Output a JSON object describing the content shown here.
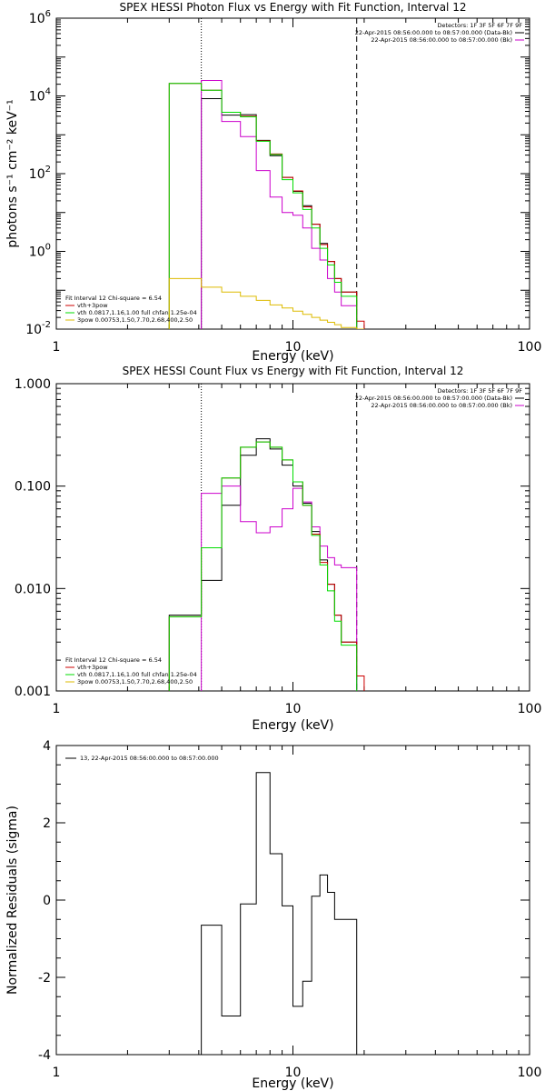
{
  "chart_data": [
    {
      "id": "photon",
      "type": "line",
      "title": "SPEX HESSI Photon Flux vs Energy with Fit Function, Interval 12",
      "xlabel": "Energy (keV)",
      "ylabel": "photons s⁻¹ cm⁻² keV⁻¹",
      "xscale": "log",
      "yscale": "log",
      "xlim": [
        1,
        100
      ],
      "ylim": [
        0.01,
        1000000
      ],
      "x_ticks": [
        {
          "value": 1,
          "label": "1"
        },
        {
          "value": 10,
          "label": "10"
        },
        {
          "value": 100,
          "label": "100"
        }
      ],
      "y_ticks": [
        {
          "value": 0.01,
          "label": "10",
          "exp": "-2"
        },
        {
          "value": 1,
          "label": "10",
          "exp": "0"
        },
        {
          "value": 100,
          "label": "10",
          "exp": "2"
        },
        {
          "value": 10000,
          "label": "10",
          "exp": "4"
        },
        {
          "value": 1000000,
          "label": "10",
          "exp": "6"
        }
      ],
      "fit_legend": [
        {
          "text": "Fit Interval 12    Chi-square = 6.54",
          "color": null
        },
        {
          "text": "vth+3pow",
          "color": "#cc0000"
        },
        {
          "text": "vth 0.0817,1.16,1.00  full chfan 1.25e-04",
          "color": "#00dd00"
        },
        {
          "text": "3pow 0.00753,1.50,7.70,2.68,400,2.50",
          "color": "#ddbb00"
        }
      ],
      "detector_legend": [
        {
          "text": "Detectors: 1F 3F 5F 6F 7F 9F",
          "color": null
        },
        {
          "text": "22-Apr-2015 08:56:00.000 to 08:57:00.000 (Data-Bk)",
          "color": "#000000"
        },
        {
          "text": "22-Apr-2015 08:56:00.000 to 08:57:00.000 (Bk)",
          "color": "#cc00cc"
        }
      ],
      "vlines": [
        {
          "x": 4.1,
          "style": "dotted",
          "color": "#000000"
        },
        {
          "x": 18.6,
          "style": "dashed",
          "color": "#000000"
        }
      ],
      "series": [
        {
          "id": "data_bk",
          "color": "#000000",
          "bins": [
            [
              4.1,
              5.0,
              8500
            ],
            [
              5.0,
              6.0,
              3200
            ],
            [
              6.0,
              7.0,
              3300
            ],
            [
              7.0,
              8.0,
              720
            ],
            [
              8.0,
              9.0,
              290
            ],
            [
              9.0,
              10.0,
              80
            ],
            [
              10.0,
              11.0,
              35
            ],
            [
              11.0,
              12.0,
              15
            ],
            [
              12.0,
              13.0,
              5
            ],
            [
              13.0,
              14.0,
              1.6
            ],
            [
              14.0,
              15.0,
              0.55
            ],
            [
              15.0,
              16.0,
              0.2
            ],
            [
              16.0,
              18.6,
              0.09
            ]
          ]
        },
        {
          "id": "bk",
          "color": "#cc00cc",
          "bins": [
            [
              4.1,
              5.0,
              25000
            ],
            [
              5.0,
              6.0,
              2200
            ],
            [
              6.0,
              7.0,
              900
            ],
            [
              7.0,
              8.0,
              120
            ],
            [
              8.0,
              9.0,
              25
            ],
            [
              9.0,
              10.0,
              10
            ],
            [
              10.0,
              11.0,
              8.5
            ],
            [
              11.0,
              12.0,
              4
            ],
            [
              12.0,
              13.0,
              1.2
            ],
            [
              13.0,
              14.0,
              0.6
            ],
            [
              14.0,
              15.0,
              0.2
            ],
            [
              15.0,
              16.0,
              0.09
            ],
            [
              16.0,
              18.6,
              0.04
            ]
          ]
        },
        {
          "id": "vth_plus_3pow",
          "color": "#cc0000",
          "bins": [
            [
              3.0,
              4.1,
              21000
            ],
            [
              4.1,
              5.0,
              14000
            ],
            [
              5.0,
              6.0,
              3800
            ],
            [
              6.0,
              7.0,
              3000
            ],
            [
              7.0,
              8.0,
              700
            ],
            [
              8.0,
              9.0,
              320
            ],
            [
              9.0,
              10.0,
              80
            ],
            [
              10.0,
              11.0,
              36
            ],
            [
              11.0,
              12.0,
              14
            ],
            [
              12.0,
              13.0,
              5
            ],
            [
              13.0,
              14.0,
              1.5
            ],
            [
              14.0,
              15.0,
              0.55
            ],
            [
              15.0,
              16.0,
              0.2
            ],
            [
              16.0,
              18.6,
              0.09
            ],
            [
              18.6,
              20.0,
              0.016
            ]
          ]
        },
        {
          "id": "vth",
          "color": "#00dd00",
          "bins": [
            [
              3.0,
              4.1,
              21000
            ],
            [
              4.1,
              5.0,
              14000
            ],
            [
              5.0,
              6.0,
              3800
            ],
            [
              6.0,
              7.0,
              2900
            ],
            [
              7.0,
              8.0,
              680
            ],
            [
              8.0,
              9.0,
              310
            ],
            [
              9.0,
              10.0,
              70
            ],
            [
              10.0,
              11.0,
              32
            ],
            [
              11.0,
              12.0,
              12
            ],
            [
              12.0,
              13.0,
              4
            ],
            [
              13.0,
              14.0,
              1.2
            ],
            [
              14.0,
              15.0,
              0.45
            ],
            [
              15.0,
              16.0,
              0.16
            ],
            [
              16.0,
              18.6,
              0.07
            ],
            [
              18.6,
              20.0,
              0.01
            ]
          ]
        },
        {
          "id": "3pow",
          "color": "#ddbb00",
          "bins": [
            [
              3.0,
              4.1,
              0.2
            ],
            [
              4.1,
              5.0,
              0.12
            ],
            [
              5.0,
              6.0,
              0.09
            ],
            [
              6.0,
              7.0,
              0.07
            ],
            [
              7.0,
              8.0,
              0.055
            ],
            [
              8.0,
              9.0,
              0.042
            ],
            [
              9.0,
              10.0,
              0.035
            ],
            [
              10.0,
              11.0,
              0.029
            ],
            [
              11.0,
              12.0,
              0.024
            ],
            [
              12.0,
              13.0,
              0.02
            ],
            [
              13.0,
              14.0,
              0.017
            ],
            [
              14.0,
              15.0,
              0.015
            ],
            [
              15.0,
              16.0,
              0.013
            ],
            [
              16.0,
              18.6,
              0.011
            ],
            [
              18.6,
              20.0,
              0.01
            ]
          ]
        }
      ]
    },
    {
      "id": "count",
      "type": "line",
      "title": "SPEX HESSI Count Flux vs Energy with Fit Function, Interval 12",
      "xlabel": "Energy (keV)",
      "ylabel": "",
      "xscale": "log",
      "yscale": "log",
      "xlim": [
        1,
        100
      ],
      "ylim": [
        0.001,
        1
      ],
      "x_ticks": [
        {
          "value": 1,
          "label": "1"
        },
        {
          "value": 10,
          "label": "10"
        },
        {
          "value": 100,
          "label": "100"
        }
      ],
      "y_ticks": [
        {
          "value": 0.001,
          "label": "0.001"
        },
        {
          "value": 0.01,
          "label": "0.010"
        },
        {
          "value": 0.1,
          "label": "0.100"
        },
        {
          "value": 1,
          "label": "1.000"
        }
      ],
      "fit_legend": [
        {
          "text": "Fit Interval 12    Chi-square = 6.54",
          "color": null
        },
        {
          "text": "vth+3pow",
          "color": "#cc0000"
        },
        {
          "text": "vth 0.0817,1.16,1.00  full chfan 1.25e-04",
          "color": "#00dd00"
        },
        {
          "text": "3pow 0.00753,1.50,7.70,2.68,400,2.50",
          "color": "#ddbb00"
        }
      ],
      "detector_legend": [
        {
          "text": "Detectors: 1F 3F 5F 6F 7F 9F",
          "color": null
        },
        {
          "text": "22-Apr-2015 08:56:00.000 to 08:57:00.000 (Data-Bk)",
          "color": "#000000"
        },
        {
          "text": "22-Apr-2015 08:56:00.000 to 08:57:00.000 (Bk)",
          "color": "#cc00cc"
        }
      ],
      "vlines": [
        {
          "x": 4.1,
          "style": "dotted",
          "color": "#000000"
        },
        {
          "x": 18.6,
          "style": "dashed",
          "color": "#000000"
        }
      ],
      "series": [
        {
          "id": "data_bk",
          "color": "#000000",
          "bins": [
            [
              3.0,
              4.1,
              0.0055
            ],
            [
              4.1,
              5.0,
              0.012
            ],
            [
              5.0,
              6.0,
              0.065
            ],
            [
              6.0,
              7.0,
              0.2
            ],
            [
              7.0,
              8.0,
              0.29
            ],
            [
              8.0,
              9.0,
              0.23
            ],
            [
              9.0,
              10.0,
              0.16
            ],
            [
              10.0,
              11.0,
              0.1
            ],
            [
              11.0,
              12.0,
              0.068
            ],
            [
              12.0,
              13.0,
              0.036
            ],
            [
              13.0,
              14.0,
              0.019
            ],
            [
              14.0,
              15.0,
              0.011
            ],
            [
              15.0,
              16.0,
              0.0055
            ],
            [
              16.0,
              18.6,
              0.003
            ]
          ]
        },
        {
          "id": "bk",
          "color": "#cc00cc",
          "bins": [
            [
              4.1,
              5.0,
              0.085
            ],
            [
              5.0,
              6.0,
              0.1
            ],
            [
              6.0,
              7.0,
              0.045
            ],
            [
              7.0,
              8.0,
              0.035
            ],
            [
              8.0,
              9.0,
              0.04
            ],
            [
              9.0,
              10.0,
              0.06
            ],
            [
              10.0,
              11.0,
              0.095
            ],
            [
              11.0,
              12.0,
              0.07
            ],
            [
              12.0,
              13.0,
              0.04
            ],
            [
              13.0,
              14.0,
              0.026
            ],
            [
              14.0,
              15.0,
              0.02
            ],
            [
              15.0,
              16.0,
              0.017
            ],
            [
              16.0,
              18.6,
              0.016
            ]
          ]
        },
        {
          "id": "vth_plus_3pow",
          "color": "#cc0000",
          "bins": [
            [
              3.0,
              4.1,
              0.0053
            ],
            [
              4.1,
              5.0,
              0.025
            ],
            [
              5.0,
              6.0,
              0.12
            ],
            [
              6.0,
              7.0,
              0.24
            ],
            [
              7.0,
              8.0,
              0.27
            ],
            [
              8.0,
              9.0,
              0.24
            ],
            [
              9.0,
              10.0,
              0.18
            ],
            [
              10.0,
              11.0,
              0.11
            ],
            [
              11.0,
              12.0,
              0.065
            ],
            [
              12.0,
              13.0,
              0.034
            ],
            [
              13.0,
              14.0,
              0.018
            ],
            [
              14.0,
              15.0,
              0.011
            ],
            [
              15.0,
              16.0,
              0.0055
            ],
            [
              16.0,
              18.6,
              0.003
            ],
            [
              18.6,
              20.0,
              0.0014
            ]
          ]
        },
        {
          "id": "vth",
          "color": "#00dd00",
          "bins": [
            [
              3.0,
              4.1,
              0.0053
            ],
            [
              4.1,
              5.0,
              0.025
            ],
            [
              5.0,
              6.0,
              0.12
            ],
            [
              6.0,
              7.0,
              0.24
            ],
            [
              7.0,
              8.0,
              0.27
            ],
            [
              8.0,
              9.0,
              0.24
            ],
            [
              9.0,
              10.0,
              0.18
            ],
            [
              10.0,
              11.0,
              0.11
            ],
            [
              11.0,
              12.0,
              0.065
            ],
            [
              12.0,
              13.0,
              0.033
            ],
            [
              13.0,
              14.0,
              0.017
            ],
            [
              14.0,
              15.0,
              0.0095
            ],
            [
              15.0,
              16.0,
              0.0048
            ],
            [
              16.0,
              18.6,
              0.0028
            ]
          ]
        }
      ]
    },
    {
      "id": "resid",
      "type": "line",
      "title": "",
      "xlabel": "Energy (keV)",
      "ylabel": "Normalized Residuals (sigma)",
      "xscale": "log",
      "yscale": "linear",
      "xlim": [
        1,
        100
      ],
      "ylim": [
        -4,
        4
      ],
      "x_ticks": [
        {
          "value": 1,
          "label": "1"
        },
        {
          "value": 10,
          "label": "10"
        },
        {
          "value": 100,
          "label": "100"
        }
      ],
      "y_ticks": [
        {
          "value": -4,
          "label": "-4"
        },
        {
          "value": -2,
          "label": "-2"
        },
        {
          "value": 0,
          "label": "0"
        },
        {
          "value": 2,
          "label": "2"
        },
        {
          "value": 4,
          "label": "4"
        }
      ],
      "fit_legend": [],
      "detector_legend": [],
      "resid_legend": "13, 22-Apr-2015 08:56:00.000 to 08:57:00.000",
      "vlines": [],
      "series": [
        {
          "id": "residuals",
          "color": "#000000",
          "drop_to_min": true,
          "bins": [
            [
              4.1,
              5.0,
              -0.65
            ],
            [
              5.0,
              6.0,
              -3.0
            ],
            [
              6.0,
              7.0,
              -0.1
            ],
            [
              7.0,
              8.0,
              3.3
            ],
            [
              8.0,
              9.0,
              1.2
            ],
            [
              9.0,
              10.0,
              -0.15
            ],
            [
              10.0,
              11.0,
              -2.75
            ],
            [
              11.0,
              12.0,
              -2.1
            ],
            [
              12.0,
              13.0,
              0.1
            ],
            [
              13.0,
              14.0,
              0.65
            ],
            [
              14.0,
              15.0,
              0.2
            ],
            [
              15.0,
              16.0,
              -0.5
            ],
            [
              16.0,
              18.6,
              -0.5
            ]
          ]
        }
      ]
    }
  ]
}
